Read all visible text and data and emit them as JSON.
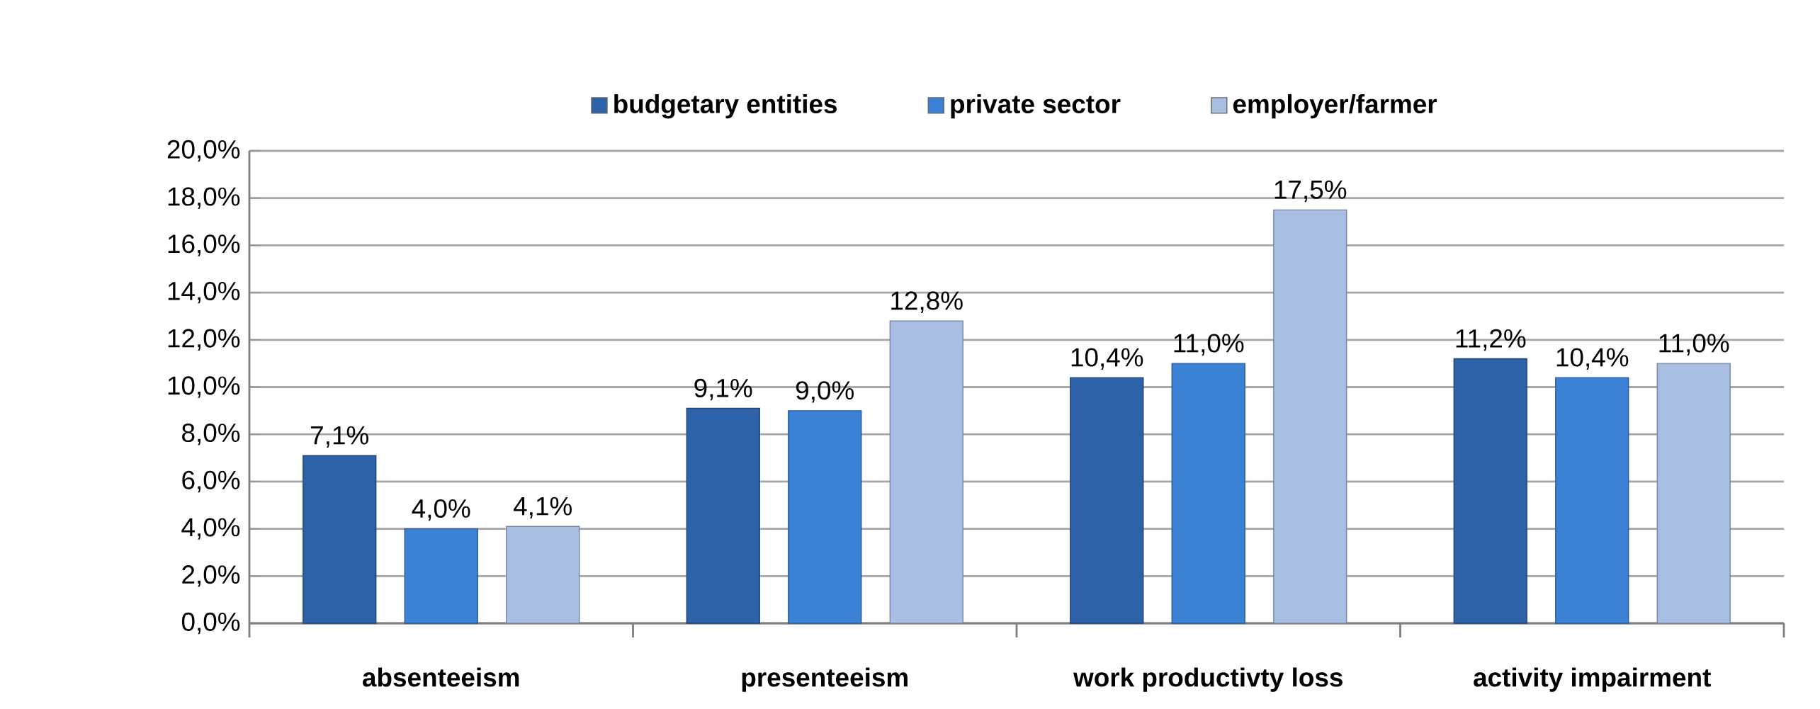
{
  "chart_data": {
    "type": "bar",
    "categories": [
      "absenteeism",
      "presenteeism",
      "work productivty loss",
      "activity impairment"
    ],
    "series": [
      {
        "name": "budgetary entities",
        "color": "#2e62a8",
        "values": [
          7.1,
          9.1,
          10.4,
          11.2
        ],
        "value_labels": [
          "7,1%",
          "9,1%",
          "10,4%",
          "11,2%"
        ]
      },
      {
        "name": "private sector",
        "color": "#3b82d6",
        "values": [
          4.0,
          9.0,
          11.0,
          10.4
        ],
        "value_labels": [
          "4,0%",
          "9,0%",
          "11,0%",
          "10,4%"
        ]
      },
      {
        "name": "employer/farmer",
        "color": "#a9bee3",
        "values": [
          4.1,
          12.8,
          17.5,
          11.0
        ],
        "value_labels": [
          "4,1%",
          "12,8%",
          "17,5%",
          "11,0%"
        ]
      }
    ],
    "ylim": [
      0,
      20
    ],
    "yticks": [
      {
        "value": 0,
        "label": "0,0%"
      },
      {
        "value": 2,
        "label": "2,0%"
      },
      {
        "value": 4,
        "label": "4,0%"
      },
      {
        "value": 6,
        "label": "6,0%"
      },
      {
        "value": 8,
        "label": "8,0%"
      },
      {
        "value": 10,
        "label": "10,0%"
      },
      {
        "value": 12,
        "label": "12,0%"
      },
      {
        "value": 14,
        "label": "14,0%"
      },
      {
        "value": 16,
        "label": "16,0%"
      },
      {
        "value": 18,
        "label": "18,0%"
      },
      {
        "value": 20,
        "label": "20,0%"
      }
    ],
    "grid": "y",
    "legend": "top"
  }
}
